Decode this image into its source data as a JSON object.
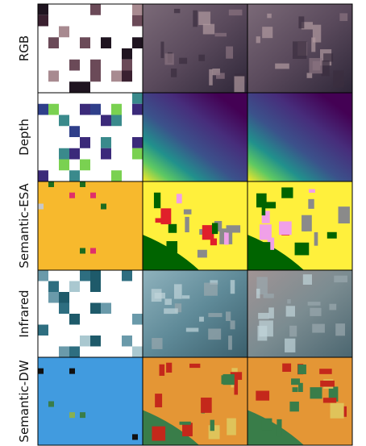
{
  "rows": [
    {
      "label": "RGB"
    },
    {
      "label": "Depth"
    },
    {
      "label": "Semantic-ESA"
    },
    {
      "label": "Infrared"
    },
    {
      "label": "Semantic-DW"
    }
  ]
}
